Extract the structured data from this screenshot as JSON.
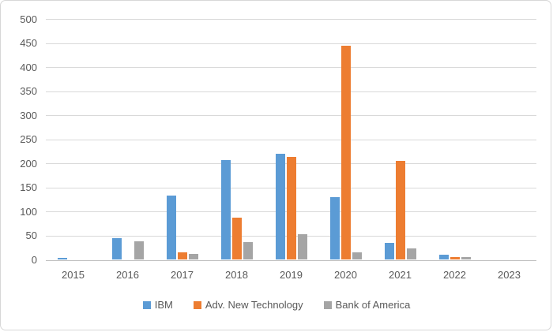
{
  "chart_data": {
    "type": "bar",
    "title": "",
    "xlabel": "",
    "ylabel": "",
    "categories": [
      "2015",
      "2016",
      "2017",
      "2018",
      "2019",
      "2020",
      "2021",
      "2022",
      "2023"
    ],
    "series": [
      {
        "name": "IBM",
        "color": "#5B9BD5",
        "values": [
          4,
          45,
          134,
          207,
          220,
          130,
          36,
          10,
          0
        ]
      },
      {
        "name": "Adv. New Technology",
        "color": "#ED7D31",
        "values": [
          0,
          0,
          15,
          88,
          214,
          444,
          206,
          5,
          0
        ]
      },
      {
        "name": "Bank of America",
        "color": "#A5A5A5",
        "values": [
          0,
          38,
          12,
          37,
          54,
          16,
          23,
          6,
          0
        ]
      }
    ],
    "ylim": [
      0,
      500
    ],
    "ytick_step": 50,
    "yticks": [
      0,
      50,
      100,
      150,
      200,
      250,
      300,
      350,
      400,
      450,
      500
    ],
    "grid": "horizontal",
    "legend_position": "bottom",
    "colors": {
      "axis_text": "#595959",
      "gridline": "#D9D9D9",
      "axis_line": "#BFBFBF",
      "background": "#FFFFFF",
      "border": "#D7D7D7"
    }
  }
}
